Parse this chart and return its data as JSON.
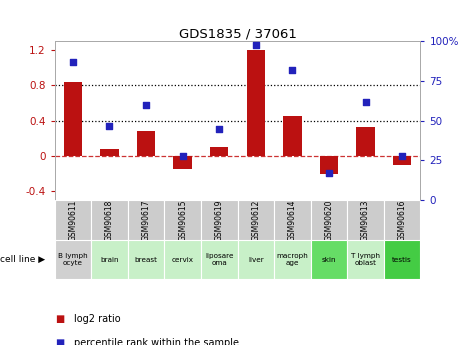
{
  "title": "GDS1835 / 37061",
  "categories": [
    "GSM90611",
    "GSM90618",
    "GSM90617",
    "GSM90615",
    "GSM90619",
    "GSM90612",
    "GSM90614",
    "GSM90620",
    "GSM90613",
    "GSM90616"
  ],
  "cell_lines": [
    "B lymph\nocyte",
    "brain",
    "breast",
    "cervix",
    "liposare\noma",
    "liver",
    "macroph\nage",
    "skin",
    "T lymph\noblast",
    "testis"
  ],
  "cell_line_colors": [
    "#d0d0d0",
    "#c8f0c8",
    "#c8f0c8",
    "#c8f0c8",
    "#c8f0c8",
    "#c8f0c8",
    "#c8f0c8",
    "#66dd66",
    "#c8f0c8",
    "#44cc44"
  ],
  "log2_ratio": [
    0.84,
    0.08,
    0.28,
    -0.15,
    0.1,
    1.2,
    0.45,
    -0.2,
    0.33,
    -0.1
  ],
  "percentile_rank": [
    87,
    47,
    60,
    28,
    45,
    98,
    82,
    17,
    62,
    28
  ],
  "bar_color": "#bb1111",
  "dot_color": "#2222bb",
  "ylim_left": [
    -0.5,
    1.3
  ],
  "ylim_right": [
    -4.545,
    10
  ],
  "yticks_left": [
    -0.4,
    0.0,
    0.4,
    0.8,
    1.2
  ],
  "ytick_labels_left": [
    "-0.4",
    "0",
    "0.4",
    "0.8",
    "1.2"
  ],
  "yticks_right": [
    0,
    25,
    50,
    75,
    100
  ],
  "ytick_labels_right": [
    "0",
    "25",
    "50",
    "75",
    "100%"
  ],
  "hlines_dotted": [
    0.4,
    0.8
  ],
  "hline_dashed_val": 0.0,
  "legend_log2": "log2 ratio",
  "legend_pct": "percentile rank within the sample",
  "cell_line_label": "cell line"
}
